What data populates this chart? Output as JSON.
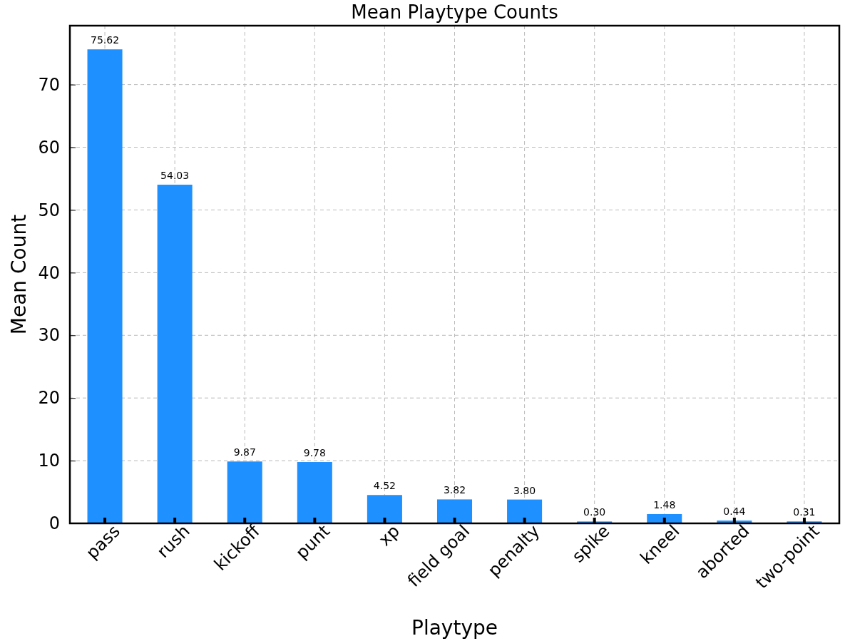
{
  "chart_data": {
    "type": "bar",
    "title": "Mean Playtype Counts",
    "xlabel": "Playtype",
    "ylabel": "Mean Count",
    "categories": [
      "pass",
      "rush",
      "kickoff",
      "punt",
      "xp",
      "field goal",
      "penalty",
      "spike",
      "kneel",
      "aborted",
      "two-point"
    ],
    "values": [
      75.62,
      54.03,
      9.87,
      9.78,
      4.52,
      3.82,
      3.8,
      0.3,
      1.48,
      0.44,
      0.31
    ],
    "value_labels": [
      "75.62",
      "54.03",
      "9.87",
      "9.78",
      "4.52",
      "3.82",
      "3.80",
      "0.30",
      "1.48",
      "0.44",
      "0.31"
    ],
    "color": "#1e90ff",
    "ylim": [
      0,
      79.4
    ],
    "yticks": [
      0,
      10,
      20,
      30,
      40,
      50,
      60,
      70
    ],
    "grid": true
  }
}
